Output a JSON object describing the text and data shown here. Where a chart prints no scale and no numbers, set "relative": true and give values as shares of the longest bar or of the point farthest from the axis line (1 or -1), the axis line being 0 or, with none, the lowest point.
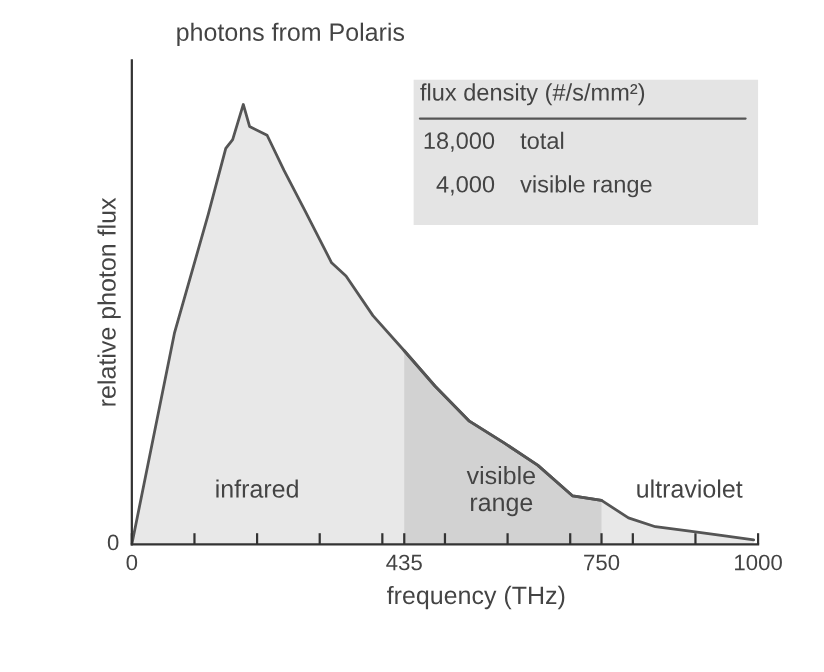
{
  "chart_data": {
    "type": "area",
    "title": "photons from Polaris",
    "xlabel": "frequency (THz)",
    "ylabel": "relative photon flux",
    "relative": true,
    "series": [
      {
        "color": "#e8e8e8",
        "x": [
          0,
          68,
          122,
          150,
          161,
          178,
          188,
          216,
          243,
          276,
          319,
          342,
          385,
          435,
          484,
          539,
          595,
          648,
          704,
          750,
          793,
          836,
          891,
          944,
          993
        ],
        "values": [
          0,
          0.48,
          0.75,
          0.9,
          0.92,
          1.0,
          0.95,
          0.93,
          0.85,
          0.76,
          0.64,
          0.61,
          0.52,
          0.44,
          0.36,
          0.28,
          0.23,
          0.18,
          0.11,
          0.1,
          0.06,
          0.04,
          0.03,
          0.02,
          0.01
        ]
      },
      {
        "color": "#d2d2d2",
        "x": [
          435,
          484,
          539,
          595,
          648,
          704,
          750
        ],
        "values": [
          0.44,
          0.36,
          0.28,
          0.23,
          0.18,
          0.11,
          0.1
        ]
      }
    ],
    "xlim": [
      0,
      1000
    ],
    "xticks": [
      0,
      {
        "value": 100,
        "label": null
      },
      {
        "value": 200,
        "label": null
      },
      {
        "value": 300,
        "label": null
      },
      {
        "value": 400,
        "label": null
      },
      435,
      {
        "value": 500,
        "label": null
      },
      {
        "value": 600,
        "label": null
      },
      {
        "value": 700,
        "label": null
      },
      750,
      {
        "value": 800,
        "label": null
      },
      {
        "value": 900,
        "label": null
      },
      1000
    ],
    "annotations": [
      "infrared",
      "visible\nrange",
      "ultraviolet",
      "0",
      "flux density (#/s/mm²)",
      "18,000",
      "total",
      "4,000",
      "visible range"
    ]
  }
}
